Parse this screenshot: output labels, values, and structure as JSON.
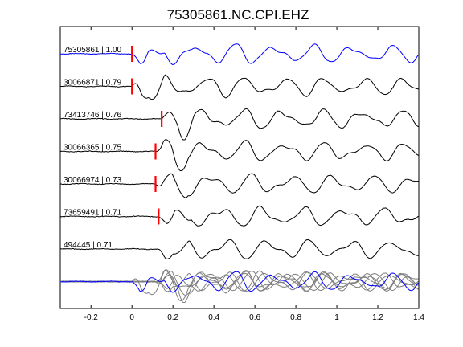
{
  "chart_data": {
    "type": "line",
    "title": "75305861.NC.CPI.EHZ",
    "xlim": [
      -0.35,
      1.4
    ],
    "xticks": [
      -0.2,
      0,
      0.2,
      0.4,
      0.6,
      0.8,
      1,
      1.2,
      1.4
    ],
    "xtick_labels": [
      "-0.2",
      "0",
      "0.2",
      "0.4",
      "0.6",
      "0.8",
      "1",
      "1.2",
      "1.4"
    ],
    "xlabel": "",
    "ylabel": "",
    "grid": false,
    "colors": {
      "master": "#0000ff",
      "trace": "#000000",
      "overlay": "#7f7f7f",
      "pick": "#ff0000"
    },
    "traces": [
      {
        "label": "75305861 | 1.00",
        "event_id": "75305861",
        "correlation": 1.0,
        "pick_time": 0.0,
        "color": "#0000ff",
        "seed": 1
      },
      {
        "label": "30066871 | 0.79",
        "event_id": "30066871",
        "correlation": 0.79,
        "pick_time": 0.0,
        "color": "#000000",
        "seed": 2
      },
      {
        "label": "73413746 | 0.76",
        "event_id": "73413746",
        "correlation": 0.76,
        "pick_time": 0.145,
        "color": "#000000",
        "seed": 3
      },
      {
        "label": "30066365 | 0.75",
        "event_id": "30066365",
        "correlation": 0.75,
        "pick_time": 0.115,
        "color": "#000000",
        "seed": 4
      },
      {
        "label": "30066974 | 0.73",
        "event_id": "30066974",
        "correlation": 0.73,
        "pick_time": 0.115,
        "color": "#000000",
        "seed": 5
      },
      {
        "label": "73659491 | 0.71",
        "event_id": "73659491",
        "correlation": 0.71,
        "pick_time": 0.13,
        "color": "#000000",
        "seed": 6
      },
      {
        "label": "494445 | 0.71",
        "event_id": "494445",
        "correlation": 0.71,
        "pick_time": null,
        "color": "#000000",
        "seed": 7
      }
    ],
    "stack": {
      "label": "",
      "overlay_color": "#7f7f7f",
      "master_color": "#0000ff"
    }
  }
}
